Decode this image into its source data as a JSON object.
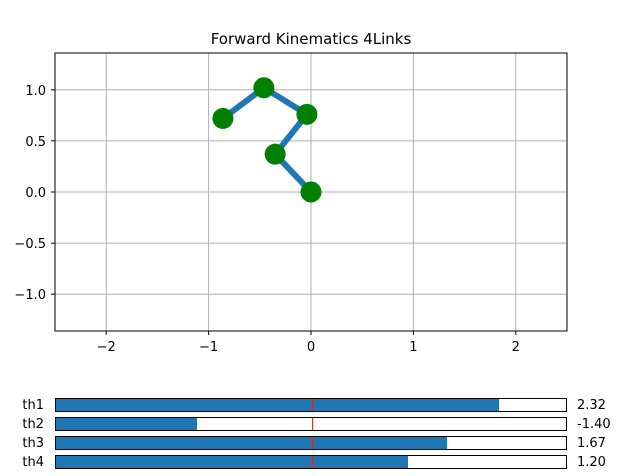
{
  "chart_data": {
    "type": "line",
    "title": "Forward Kinematics 4Links",
    "xlim": [
      -2.5,
      2.5
    ],
    "ylim": [
      -1.36,
      1.36
    ],
    "xticks": [
      -2,
      -1,
      0,
      1,
      2
    ],
    "yticks": [
      -1.0,
      -0.5,
      0.0,
      0.5,
      1.0
    ],
    "xtick_labels": [
      "−2",
      "−1",
      "0",
      "1",
      "2"
    ],
    "ytick_labels": [
      "−1.0",
      "−0.5",
      "0.0",
      "0.5",
      "1.0"
    ],
    "grid": true,
    "series": [
      {
        "x": [
          0.0,
          -0.35,
          -0.04,
          -0.46,
          -0.86
        ],
        "y": [
          0.0,
          0.37,
          0.76,
          1.02,
          0.72
        ],
        "line_color": "#1f77b4",
        "marker_color": "#008000"
      }
    ]
  },
  "sliders": [
    {
      "label": "th1",
      "value": 2.32,
      "display": "2.32",
      "min": -3.14,
      "max": 3.14,
      "init": 0
    },
    {
      "label": "th2",
      "value": -1.4,
      "display": "-1.40",
      "min": -3.14,
      "max": 3.14,
      "init": 0
    },
    {
      "label": "th3",
      "value": 1.67,
      "display": "1.67",
      "min": -3.14,
      "max": 3.14,
      "init": 0
    },
    {
      "label": "th4",
      "value": 1.2,
      "display": "1.20",
      "min": -3.14,
      "max": 3.14,
      "init": 0
    }
  ],
  "colors": {
    "fill": "#1f77b4",
    "init_line": "#d62728",
    "grid": "#b0b0b0"
  }
}
